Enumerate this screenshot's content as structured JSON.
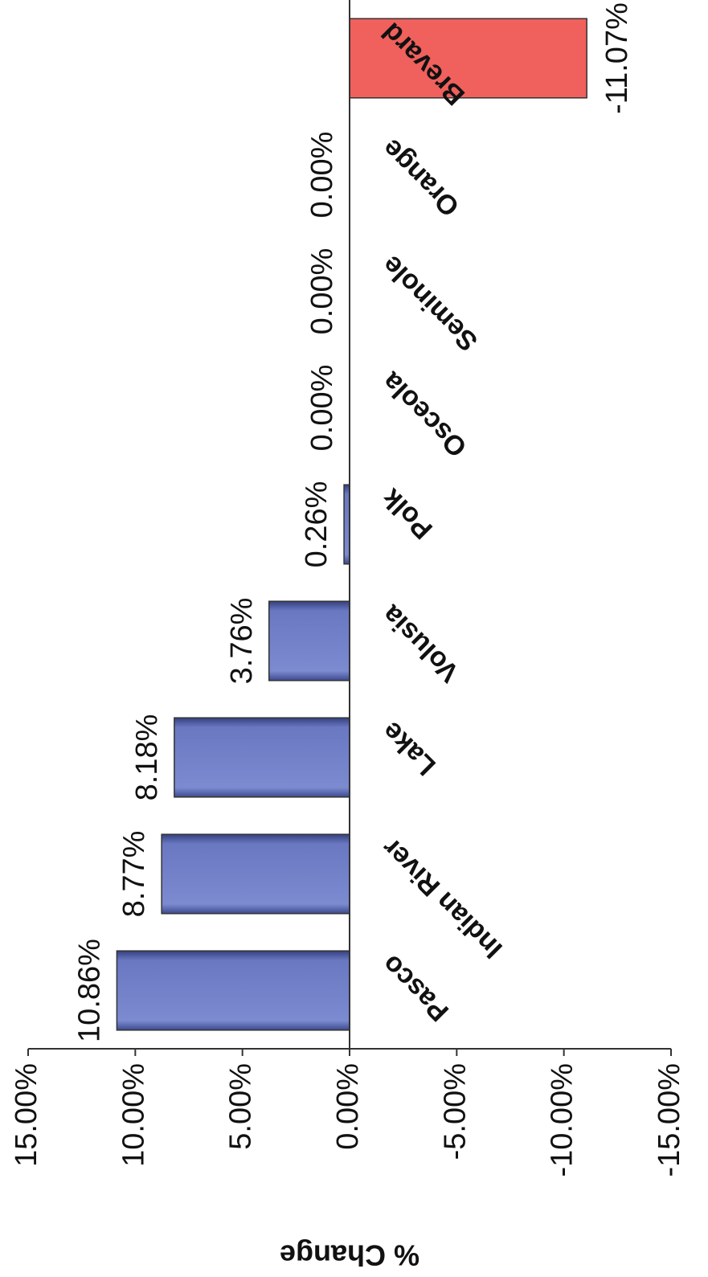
{
  "chart_data": {
    "type": "bar",
    "y_label": "% Change",
    "categories": [
      "Pasco",
      "Indian River",
      "Lake",
      "Volusia",
      "Polk",
      "Osceola",
      "Seminole",
      "Orange",
      "Brevard"
    ],
    "values": [
      10.86,
      8.77,
      8.18,
      3.76,
      0.26,
      0,
      0,
      0,
      -11.07
    ],
    "value_labels": [
      "10.86%",
      "8.77%",
      "8.18%",
      "3.76%",
      "0.26%",
      "0.00%",
      "0.00%",
      "0.00%",
      "-11.07%"
    ],
    "colors": [
      "#6a78c2",
      "#6a78c2",
      "#6a78c2",
      "#6a78c2",
      "#6a78c2",
      "#6a78c2",
      "#6a78c2",
      "#6a78c2",
      "#f0605c"
    ],
    "ylim": [
      -15,
      15
    ],
    "yticks": [
      {
        "value": -15,
        "label": "-15.00%"
      },
      {
        "value": -10,
        "label": "-10.00%"
      },
      {
        "value": -5,
        "label": "-5.00%"
      },
      {
        "value": 0,
        "label": "0.00%"
      },
      {
        "value": 5,
        "label": "5.00%"
      },
      {
        "value": 10,
        "label": "10.00%"
      },
      {
        "value": 15,
        "label": "15.00%"
      }
    ],
    "grid": false
  }
}
